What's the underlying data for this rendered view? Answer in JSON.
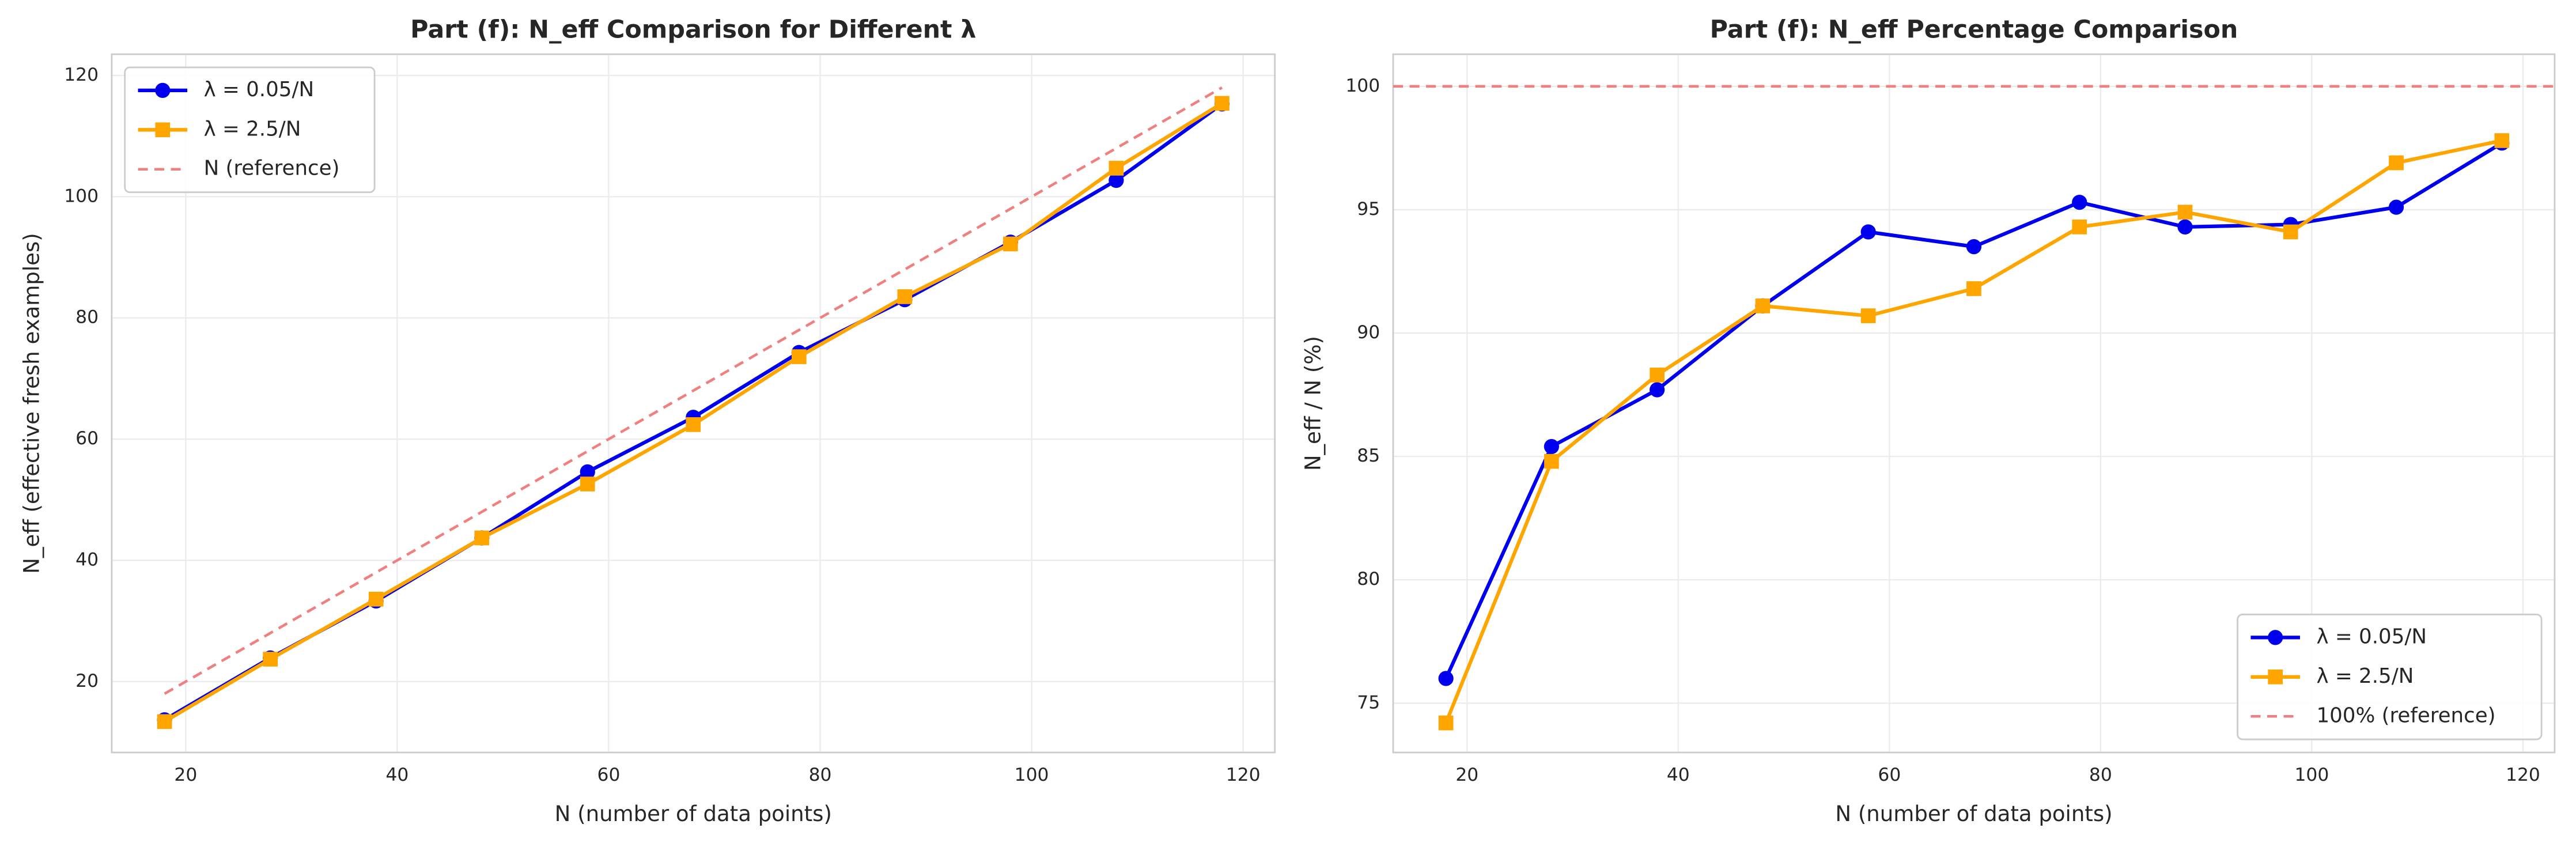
{
  "chart_data": [
    {
      "type": "line",
      "title": "Part (f): N_eff Comparison for Different λ",
      "xlabel": "N (number of data points)",
      "ylabel": "N_eff (effective fresh examples)",
      "x": [
        18,
        28,
        38,
        48,
        58,
        68,
        78,
        88,
        98,
        108,
        118
      ],
      "series": [
        {
          "name": "λ = 0.05/N",
          "color": "#0000ee",
          "marker": "circle",
          "values": [
            13.7,
            23.9,
            33.3,
            43.7,
            54.6,
            63.6,
            74.3,
            83.0,
            92.5,
            102.7,
            115.3
          ]
        },
        {
          "name": "λ = 2.5/N",
          "color": "#ffa500",
          "marker": "square",
          "values": [
            13.4,
            23.7,
            33.6,
            43.7,
            52.6,
            62.4,
            73.6,
            83.5,
            92.2,
            104.7,
            115.4
          ]
        },
        {
          "name": "N (reference)",
          "color": "#f08080",
          "dashed": true,
          "values": [
            18,
            28,
            38,
            48,
            58,
            68,
            78,
            88,
            98,
            108,
            118
          ]
        }
      ],
      "xlim": [
        13,
        123
      ],
      "xticks": [
        20,
        40,
        60,
        80,
        100,
        120
      ],
      "ylim": [
        8.3,
        123.5
      ],
      "yticks": [
        20,
        40,
        60,
        80,
        100,
        120
      ],
      "grid": true,
      "legend": "upper left"
    },
    {
      "type": "line",
      "title": "Part (f): N_eff Percentage Comparison",
      "xlabel": "N (number of data points)",
      "ylabel": "N_eff / N (%)",
      "x": [
        18,
        28,
        38,
        48,
        58,
        68,
        78,
        88,
        98,
        108,
        118
      ],
      "series": [
        {
          "name": "λ = 0.05/N",
          "color": "#0000ee",
          "marker": "circle",
          "values": [
            76.0,
            85.4,
            87.7,
            91.1,
            94.1,
            93.5,
            95.3,
            94.3,
            94.4,
            95.1,
            97.7
          ]
        },
        {
          "name": "λ = 2.5/N",
          "color": "#ffa500",
          "marker": "square",
          "values": [
            74.2,
            84.8,
            88.3,
            91.1,
            90.7,
            91.8,
            94.3,
            94.9,
            94.1,
            96.9,
            97.8
          ]
        }
      ],
      "reference_lines": [
        {
          "name": "100% (reference)",
          "value": 100,
          "color": "#f08080"
        }
      ],
      "xlim": [
        13,
        123
      ],
      "xticks": [
        20,
        40,
        60,
        80,
        100,
        120
      ],
      "ylim": [
        73,
        101.3
      ],
      "yticks": [
        75,
        80,
        85,
        90,
        95,
        100
      ],
      "grid": true,
      "legend": "lower right"
    }
  ]
}
